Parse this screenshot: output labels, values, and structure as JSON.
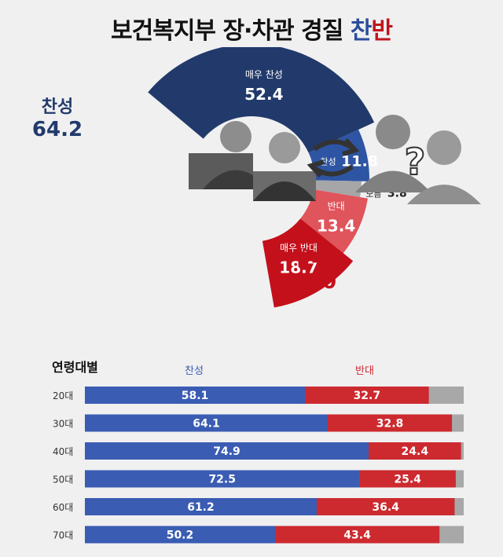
{
  "title": {
    "main": "보건복지부 장·차관 경질",
    "hl1": "찬",
    "hl2": "반",
    "colors": {
      "hl1": "#2b4d9c",
      "hl2": "#c0151d"
    }
  },
  "chart_data": [
    {
      "type": "pie",
      "slices": [
        {
          "label": "매우 찬성",
          "value": 52.4,
          "color": "#213a6b"
        },
        {
          "label": "찬성",
          "value": 11.8,
          "color": "#2e55a3"
        },
        {
          "label": "모름",
          "value": 3.8,
          "color": "#a6a6a8"
        },
        {
          "label": "반대",
          "value": 13.4,
          "color": "#e0545b"
        },
        {
          "label": "매우 반대",
          "value": 18.7,
          "color": "#c4101b"
        }
      ],
      "groups": [
        {
          "label": "찬성",
          "value": "64.2",
          "color": "#213a6b"
        },
        {
          "label": "반대",
          "value": "32.0",
          "color": "#c4101b"
        }
      ]
    },
    {
      "type": "bar",
      "stacked": true,
      "orientation": "horizontal",
      "title": "연령대별",
      "categories": [
        "20대",
        "30대",
        "40대",
        "50대",
        "60대",
        "70대"
      ],
      "series": [
        {
          "name": "찬성",
          "color": "#3a5cb3",
          "values": [
            58.1,
            64.1,
            74.9,
            72.5,
            61.2,
            50.2
          ]
        },
        {
          "name": "반대",
          "color": "#cc2a2f",
          "values": [
            32.7,
            32.8,
            24.4,
            25.4,
            36.4,
            43.4
          ]
        }
      ],
      "remainder_color": "#a8a8a8"
    }
  ]
}
